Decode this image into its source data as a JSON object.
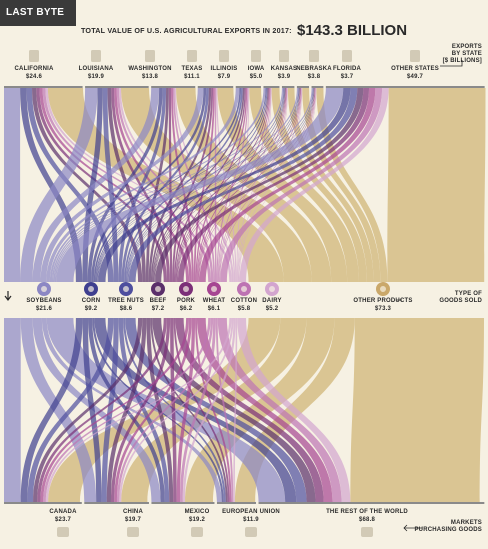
{
  "header": {
    "label": "LAST BYTE"
  },
  "title": {
    "text": "TOTAL VALUE OF U.S. AGRICULTURAL EXPORTS IN 2017:",
    "total": "$143.3 BILLION"
  },
  "side_labels": {
    "states": [
      "EXPORTS",
      "BY STATE",
      "[$ BILLIONS]"
    ],
    "goods": [
      "TYPE OF",
      "GOODS SOLD"
    ],
    "markets": [
      "MARKETS",
      "PURCHASING GOODS"
    ]
  },
  "colors": {
    "soybeans": "#8c87c4",
    "corn": "#3f3f8f",
    "tree_nuts": "#4e4e9e",
    "beef": "#5a2f6a",
    "pork": "#7b2f78",
    "wheat": "#a64592",
    "cotton": "#bd73b3",
    "dairy": "#d3a5cf",
    "other": "#d7c08a",
    "background": "#f6f1e3"
  },
  "chart_data": {
    "type": "sankey",
    "title": "TOTAL VALUE OF U.S. AGRICULTURAL EXPORTS IN 2017: $143.3 BILLION",
    "units": "$ billions",
    "states": [
      {
        "name": "CALIFORNIA",
        "value": 24.6,
        "label": "$24.6",
        "icon": "california-icon"
      },
      {
        "name": "LOUISIANA",
        "value": 19.9,
        "label": "$19.9",
        "icon": "louisiana-icon"
      },
      {
        "name": "WASHINGTON",
        "value": 13.8,
        "label": "$13.8",
        "icon": "washington-icon"
      },
      {
        "name": "TEXAS",
        "value": 11.1,
        "label": "$11.1",
        "icon": "texas-icon"
      },
      {
        "name": "ILLINOIS",
        "value": 7.9,
        "label": "$7.9",
        "icon": "illinois-icon"
      },
      {
        "name": "IOWA",
        "value": 5.0,
        "label": "$5.0",
        "icon": "iowa-icon"
      },
      {
        "name": "KANSAS",
        "value": 3.9,
        "label": "$3.9",
        "icon": "kansas-icon"
      },
      {
        "name": "NEBRASKA",
        "value": 3.8,
        "label": "$3.8",
        "icon": "nebraska-icon"
      },
      {
        "name": "FLORIDA",
        "value": 3.7,
        "label": "$3.7",
        "icon": "florida-icon"
      },
      {
        "name": "OTHER STATES",
        "value": 49.7,
        "label": "$49.7",
        "icon": "usa-map-icon"
      }
    ],
    "goods": [
      {
        "name": "SOYBEANS",
        "value": 21.6,
        "label": "$21.6",
        "icon": "soybean-icon",
        "color": "soybeans"
      },
      {
        "name": "CORN",
        "value": 9.2,
        "label": "$9.2",
        "icon": "corn-icon",
        "color": "corn"
      },
      {
        "name": "TREE NUTS",
        "value": 8.6,
        "label": "$8.6",
        "icon": "tree-nut-icon",
        "color": "tree_nuts"
      },
      {
        "name": "BEEF",
        "value": 7.2,
        "label": "$7.2",
        "icon": "cow-icon",
        "color": "beef"
      },
      {
        "name": "PORK",
        "value": 6.2,
        "label": "$6.2",
        "icon": "pig-icon",
        "color": "pork"
      },
      {
        "name": "WHEAT",
        "value": 6.1,
        "label": "$6.1",
        "icon": "wheat-icon",
        "color": "wheat"
      },
      {
        "name": "COTTON",
        "value": 5.8,
        "label": "$5.8",
        "icon": "cotton-icon",
        "color": "cotton"
      },
      {
        "name": "DAIRY",
        "value": 5.2,
        "label": "$5.2",
        "icon": "milk-carton-icon",
        "color": "dairy"
      },
      {
        "name": "OTHER PRODUCTS",
        "value": 73.3,
        "label": "$73.3",
        "icon": "barn-icon",
        "color": "other"
      }
    ],
    "markets": [
      {
        "name": "CANADA",
        "value": 23.7,
        "label": "$23.7",
        "icon": "maple-leaf-icon"
      },
      {
        "name": "CHINA",
        "value": 19.7,
        "label": "$19.7",
        "icon": "china-flag-icon"
      },
      {
        "name": "MEXICO",
        "value": 19.2,
        "label": "$19.2",
        "icon": "cactus-icon"
      },
      {
        "name": "EUROPEAN UNION",
        "value": 11.9,
        "label": "$11.9",
        "icon": "eu-flag-icon"
      },
      {
        "name": "THE REST OF THE WORLD",
        "value": 68.8,
        "label": "$68.8",
        "icon": "globe-icon"
      }
    ]
  }
}
